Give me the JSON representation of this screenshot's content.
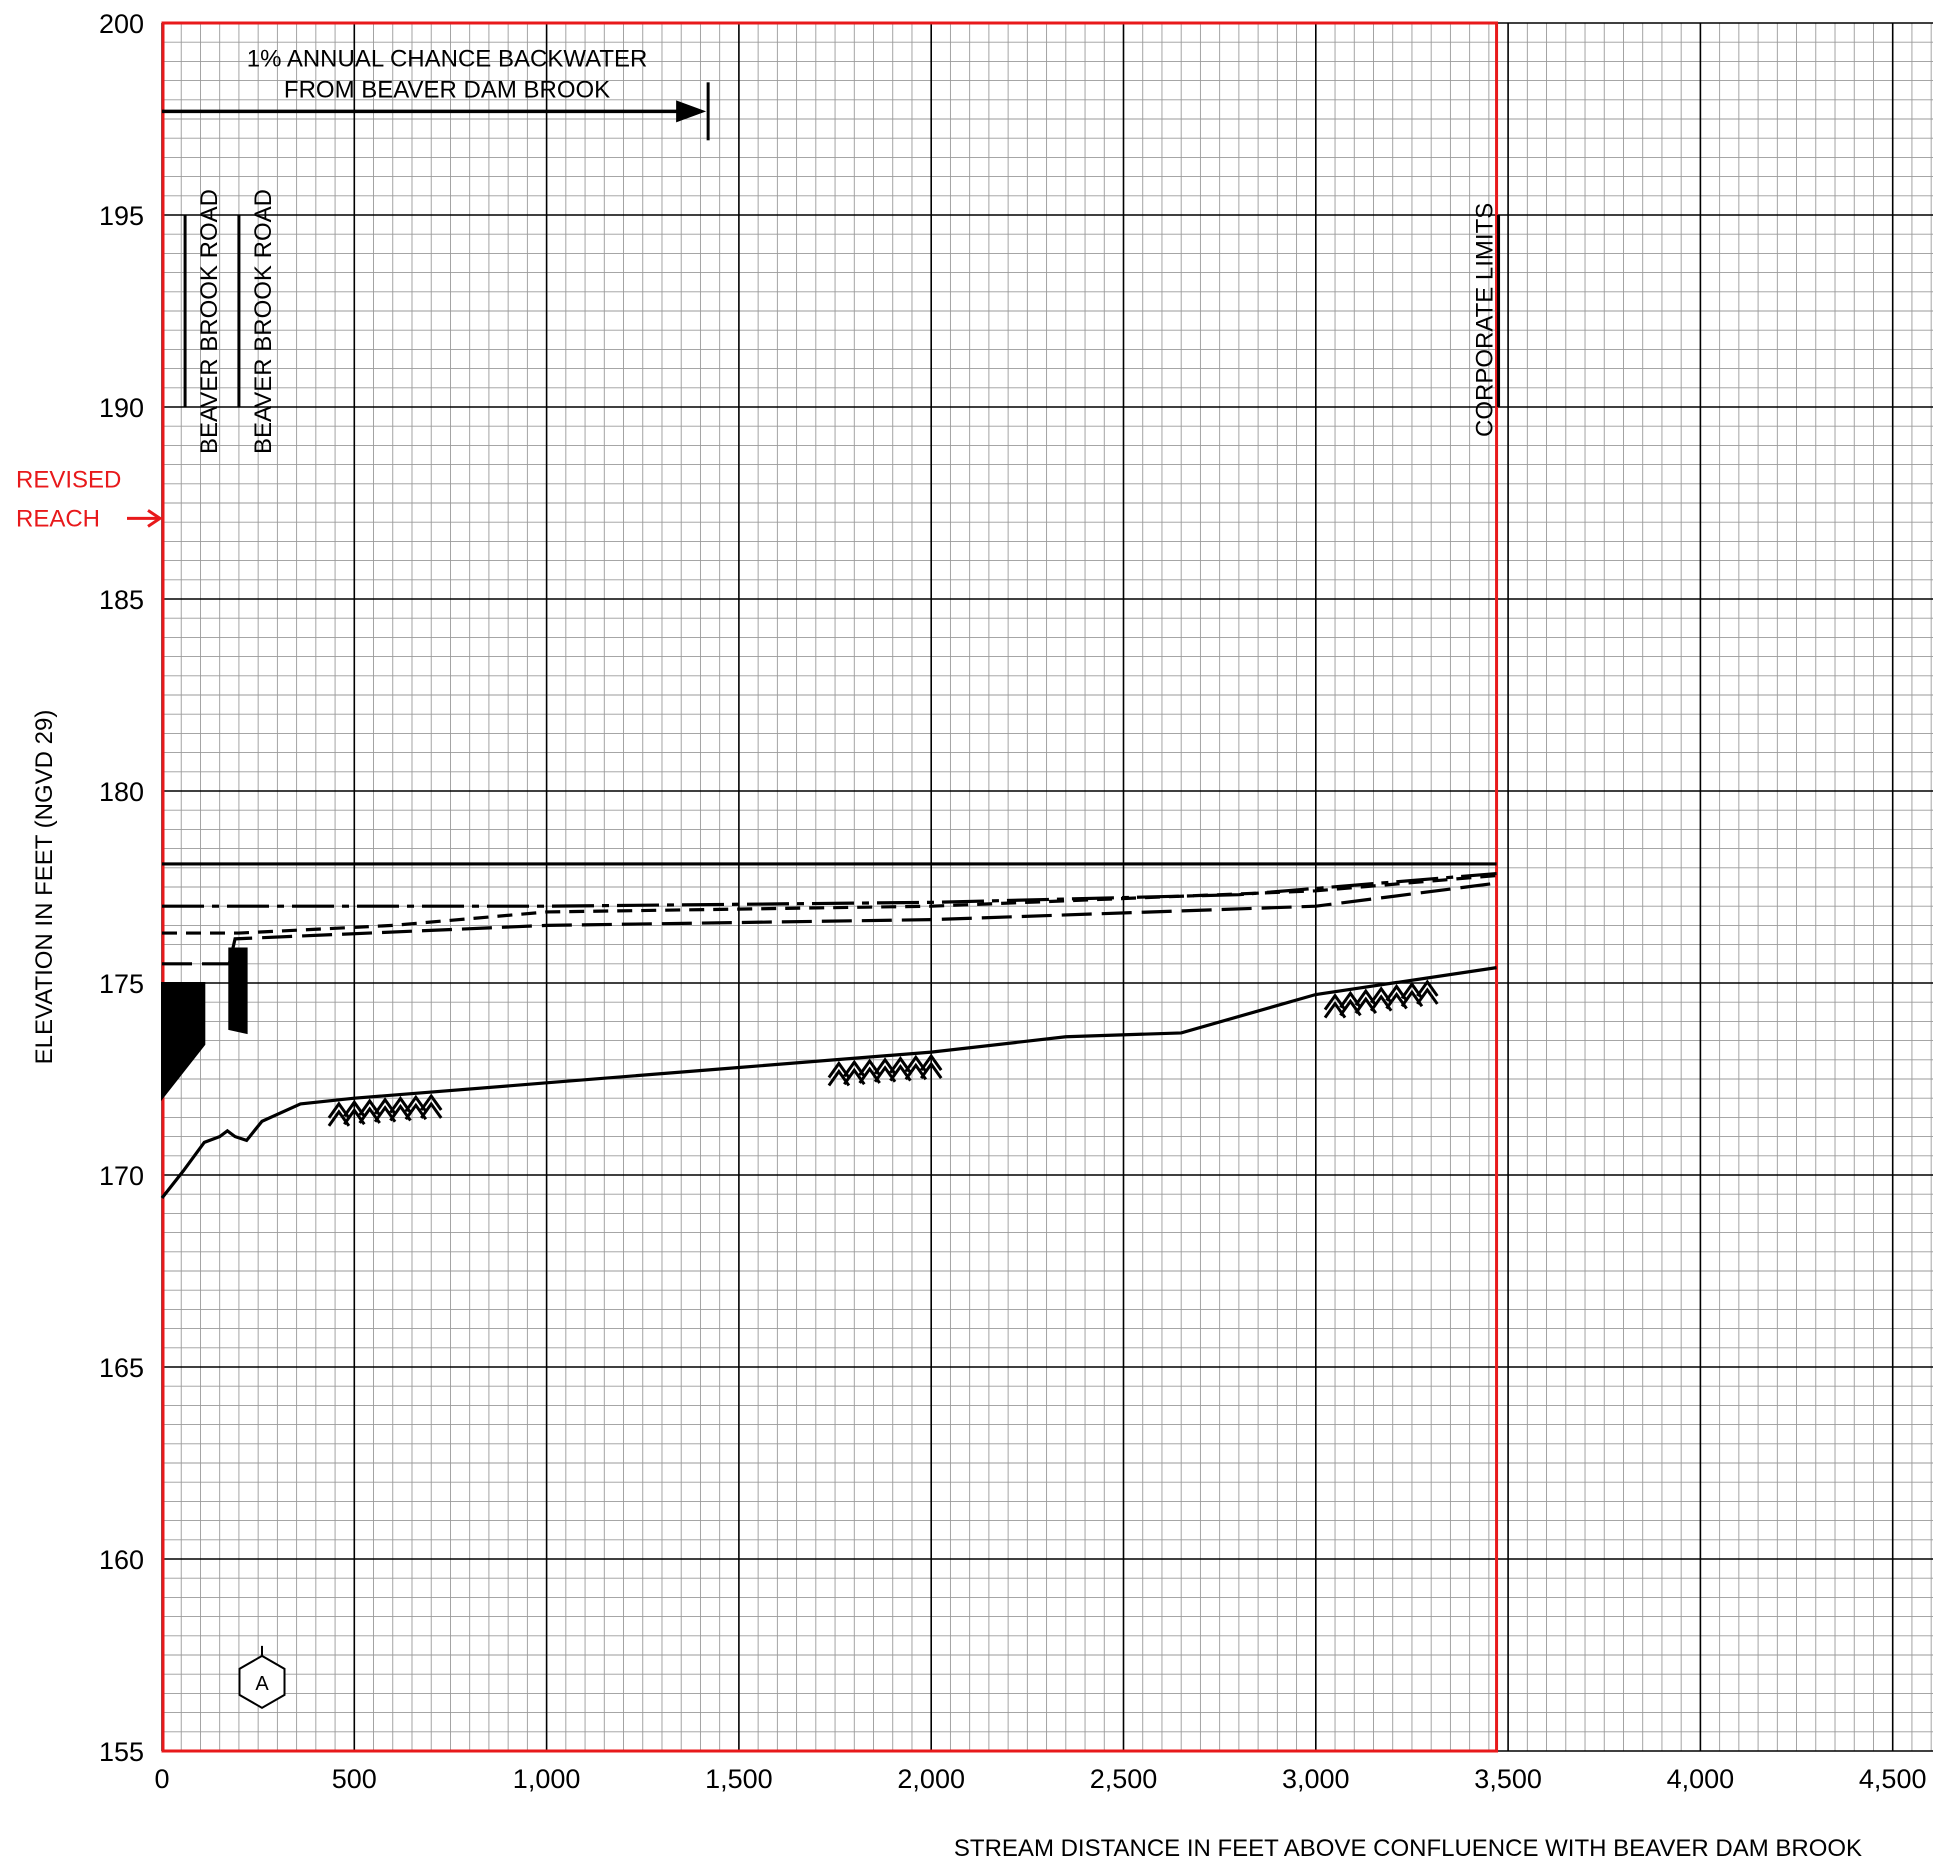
{
  "chart_data": {
    "type": "line",
    "title": "",
    "xlabel": "STREAM DISTANCE IN FEET ABOVE CONFLUENCE WITH BEAVER DAM BROOK",
    "ylabel": "ELEVATION IN FEET (NGVD 29)",
    "xlim": [
      0,
      4750
    ],
    "ylim": [
      155,
      200
    ],
    "x_ticks": [
      0,
      500,
      1000,
      1500,
      2000,
      2500,
      3000,
      3500,
      4000,
      4500
    ],
    "x_tick_labels": [
      "0",
      "500",
      "1,000",
      "1,500",
      "2,000",
      "2,500",
      "3,000",
      "3,500",
      "4,000",
      "4,500"
    ],
    "y_ticks": [
      155,
      160,
      165,
      170,
      175,
      180,
      185,
      190,
      195,
      200
    ],
    "y_tick_labels": [
      "155",
      "160",
      "165",
      "170",
      "175",
      "180",
      "185",
      "190",
      "195",
      "200"
    ],
    "grid": true,
    "revised_reach_x": [
      0,
      3470
    ],
    "revised_reach_label": [
      "REVISED",
      "REACH"
    ],
    "series": [
      {
        "style": "solid",
        "x": [
          0,
          3470
        ],
        "y": [
          178.1,
          178.1
        ]
      },
      {
        "style": "dash-dot",
        "x": [
          0,
          1000,
          2000,
          2800,
          3470
        ],
        "y": [
          177.0,
          177.0,
          177.1,
          177.3,
          177.85
        ]
      },
      {
        "style": "short-dash",
        "x": [
          0,
          200,
          600,
          1000,
          2000,
          3000,
          3470
        ],
        "y": [
          176.3,
          176.3,
          176.5,
          176.85,
          177.0,
          177.4,
          177.8
        ]
      },
      {
        "style": "long-dash",
        "x": [
          0,
          165,
          175,
          190,
          1000,
          2000,
          3000,
          3470
        ],
        "y": [
          175.5,
          175.5,
          175.5,
          176.15,
          176.5,
          176.65,
          177.0,
          177.6
        ]
      },
      {
        "style": "streambed",
        "x": [
          0,
          55,
          110,
          150,
          170,
          190,
          220,
          260,
          360,
          500,
          1000,
          1500,
          2000,
          2350,
          2650,
          3000,
          3470
        ],
        "y": [
          169.4,
          170.1,
          170.85,
          171.0,
          171.15,
          171.0,
          170.9,
          171.4,
          171.85,
          172.0,
          172.4,
          172.8,
          173.2,
          173.6,
          173.7,
          174.7,
          175.4
        ]
      }
    ],
    "bed_markers_x": [
      [
        460,
        500,
        540,
        580,
        620,
        660,
        700
      ],
      [
        1760,
        1800,
        1840,
        1880,
        1920,
        1960,
        2000
      ],
      [
        3050,
        3090,
        3130,
        3170,
        3210,
        3250,
        3290
      ]
    ],
    "structures": [
      {
        "label": "BEAVER BROOK ROAD",
        "x": 60,
        "y_top": 195,
        "y_bottom": 190
      },
      {
        "label": "BEAVER BROOK ROAD",
        "x": 200,
        "y_top": 195,
        "y_bottom": 190
      }
    ],
    "culverts": [
      {
        "x0": 0,
        "x1": 110,
        "y_top": 175.0,
        "y_bottom_left": 172.0,
        "y_bottom_right": 173.4
      },
      {
        "x0": 175,
        "x1": 220,
        "y_top": 175.9,
        "y_bottom_left": 173.8,
        "y_bottom_right": 173.7
      }
    ],
    "corporate_limits": {
      "label": "CORPORATE LIMITS",
      "x": 3470
    },
    "backwater": {
      "label": [
        "1% ANNUAL CHANCE BACKWATER",
        "FROM BEAVER DAM BROOK"
      ],
      "x0": 0,
      "x1": 1420,
      "y": 197.7
    },
    "cross_section": {
      "label": "A",
      "x": 260,
      "y": 156.8
    }
  }
}
